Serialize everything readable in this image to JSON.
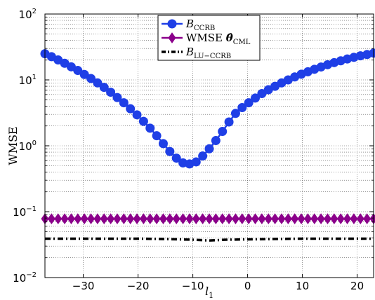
{
  "chart_data": {
    "type": "line",
    "title": "",
    "xlabel": "l",
    "xlabel_sub": "1",
    "ylabel": "WMSE",
    "xscale": "linear",
    "yscale": "log",
    "xlim": [
      -37,
      23
    ],
    "ylim": [
      0.01,
      100
    ],
    "grid": true,
    "legend_position": "top-center",
    "x_ticks": [
      -30,
      -20,
      -10,
      0,
      10,
      20
    ],
    "x_tick_labels": [
      "−30",
      "−20",
      "−10",
      "0",
      "10",
      "20"
    ],
    "y_ticks": [
      0.01,
      0.1,
      1,
      10,
      100
    ],
    "y_tick_bases": [
      "10",
      "10",
      "10",
      "10",
      "10"
    ],
    "y_tick_exponents": [
      "−2",
      "−1",
      "0",
      "1",
      "2"
    ],
    "series": [
      {
        "label_main": "B",
        "label_sub": "CCRB",
        "label_tail": "",
        "color": "#1f3fe6",
        "marker": "circle",
        "linestyle": "solid",
        "x": [
          -37,
          -35.8,
          -34.6,
          -33.4,
          -32.2,
          -31,
          -29.8,
          -28.6,
          -27.4,
          -26.2,
          -25,
          -23.8,
          -22.6,
          -21.4,
          -20.2,
          -19,
          -17.8,
          -16.6,
          -15.4,
          -14.2,
          -13,
          -11.8,
          -10.6,
          -9.4,
          -8.2,
          -7,
          -5.8,
          -4.6,
          -3.4,
          -2.2,
          -1,
          0.2,
          1.4,
          2.6,
          3.8,
          5,
          6.2,
          7.4,
          8.6,
          9.8,
          11,
          12.2,
          13.4,
          14.6,
          15.8,
          17,
          18.2,
          19.4,
          20.6,
          21.8,
          23
        ],
        "values": [
          25,
          22.5,
          20.1,
          17.9,
          15.8,
          13.9,
          12.1,
          10.5,
          9.0,
          7.7,
          6.5,
          5.4,
          4.5,
          3.65,
          2.95,
          2.35,
          1.85,
          1.42,
          1.08,
          0.82,
          0.65,
          0.55,
          0.53,
          0.57,
          0.7,
          0.9,
          1.2,
          1.65,
          2.3,
          3.1,
          3.8,
          4.5,
          5.3,
          6.2,
          7.1,
          8.0,
          9.0,
          10.0,
          11.1,
          12.2,
          13.3,
          14.5,
          15.7,
          17.0,
          18.3,
          19.5,
          20.8,
          22.0,
          23.2,
          24.3,
          25.5
        ]
      },
      {
        "label_main": "WMSE ",
        "label_sub": "CML",
        "label_tail": "",
        "label_theta": "θ̂",
        "color": "#8b008b",
        "marker": "diamond",
        "linestyle": "solid",
        "x": [
          -37,
          -35.8,
          -34.6,
          -33.4,
          -32.2,
          -31,
          -29.8,
          -28.6,
          -27.4,
          -26.2,
          -25,
          -23.8,
          -22.6,
          -21.4,
          -20.2,
          -19,
          -17.8,
          -16.6,
          -15.4,
          -14.2,
          -13,
          -11.8,
          -10.6,
          -9.4,
          -8.2,
          -7,
          -5.8,
          -4.6,
          -3.4,
          -2.2,
          -1,
          0.2,
          1.4,
          2.6,
          3.8,
          5,
          6.2,
          7.4,
          8.6,
          9.8,
          11,
          12.2,
          13.4,
          14.6,
          15.8,
          17,
          18.2,
          19.4,
          20.6,
          21.8,
          23
        ],
        "values": [
          0.078,
          0.078,
          0.078,
          0.078,
          0.078,
          0.078,
          0.078,
          0.078,
          0.078,
          0.078,
          0.078,
          0.078,
          0.078,
          0.078,
          0.078,
          0.078,
          0.078,
          0.078,
          0.078,
          0.078,
          0.078,
          0.078,
          0.078,
          0.078,
          0.078,
          0.078,
          0.078,
          0.078,
          0.078,
          0.078,
          0.078,
          0.078,
          0.078,
          0.078,
          0.078,
          0.078,
          0.078,
          0.078,
          0.078,
          0.078,
          0.078,
          0.078,
          0.078,
          0.078,
          0.078,
          0.078,
          0.078,
          0.078,
          0.078,
          0.078,
          0.078
        ]
      },
      {
        "label_main": "B",
        "label_sub": "LU−CCRB",
        "label_tail": "",
        "color": "#000000",
        "marker": "none",
        "linestyle": "dashdot",
        "x": [
          -37,
          -30,
          -20,
          -15,
          -10,
          -7,
          -4,
          0,
          10,
          23
        ],
        "values": [
          0.039,
          0.039,
          0.039,
          0.0385,
          0.0375,
          0.0365,
          0.0375,
          0.038,
          0.039,
          0.039
        ]
      }
    ]
  }
}
